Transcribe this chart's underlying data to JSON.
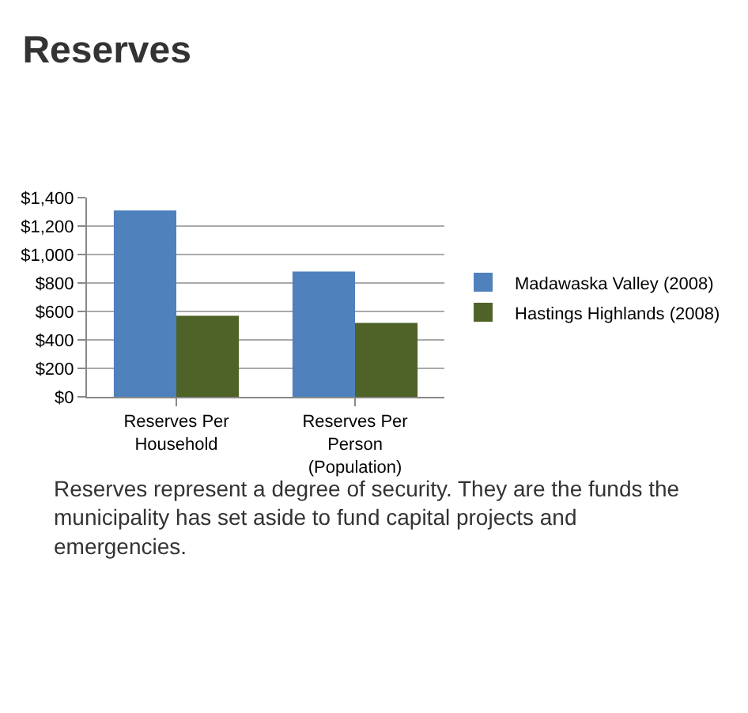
{
  "chart_data": {
    "type": "bar",
    "title": "Reserves",
    "categories": [
      "Reserves Per Household",
      "Reserves Per Person (Population)"
    ],
    "series": [
      {
        "name": "Madawaska Valley (2008)",
        "color": "#4f81bd",
        "values": [
          1310,
          880
        ]
      },
      {
        "name": "Hastings Highlands (2008)",
        "color": "#4f6228",
        "values": [
          570,
          520
        ]
      }
    ],
    "ylim": [
      0,
      1400
    ],
    "yticks": [
      {
        "value": 0,
        "label": "$0"
      },
      {
        "value": 200,
        "label": "$200"
      },
      {
        "value": 400,
        "label": "$400"
      },
      {
        "value": 600,
        "label": "$600"
      },
      {
        "value": 800,
        "label": "$800"
      },
      {
        "value": 1000,
        "label": "$1,000"
      },
      {
        "value": 1200,
        "label": "$1,200"
      },
      {
        "value": 1400,
        "label": "$1,400"
      }
    ],
    "grid": "y",
    "legend": "right",
    "annotations": [
      "Reserves represent a degree of security. They are the funds the municipality has set aside to fund capital projects and emergencies."
    ]
  }
}
